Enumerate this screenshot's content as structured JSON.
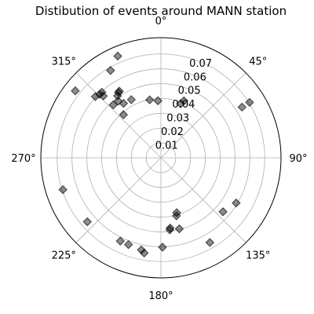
{
  "chart_data": {
    "type": "scatter",
    "projection": "polar",
    "title": "Distibution of events around MANN station",
    "theta_zero": "north",
    "theta_direction": "clockwise",
    "angular_tick_labels": [
      "0°",
      "45°",
      "90°",
      "135°",
      "180°",
      "225°",
      "270°",
      "315°"
    ],
    "radial_ticks": [
      0.01,
      0.02,
      0.03,
      0.04,
      0.05,
      0.06,
      0.07
    ],
    "radial_tick_labels": [
      "0.01",
      "0.02",
      "0.03",
      "0.04",
      "0.05",
      "0.06",
      "0.07"
    ],
    "rlim": [
      0,
      0.081
    ],
    "radial_label_angle_deg": 22.5,
    "grid": true,
    "marker": "diamond",
    "marker_color": "#000000",
    "marker_alpha": 0.45,
    "points": [
      {
        "theta": 337.0,
        "r": 0.0745
      },
      {
        "theta": 330.0,
        "r": 0.068
      },
      {
        "theta": 318.0,
        "r": 0.0595
      },
      {
        "theta": 317.0,
        "r": 0.057
      },
      {
        "theta": 316.0,
        "r": 0.0595
      },
      {
        "theta": 313.0,
        "r": 0.0605
      },
      {
        "theta": 308.0,
        "r": 0.0733
      },
      {
        "theta": 328.0,
        "r": 0.053
      },
      {
        "theta": 327.0,
        "r": 0.0525
      },
      {
        "theta": 325.0,
        "r": 0.051
      },
      {
        "theta": 323.0,
        "r": 0.0478
      },
      {
        "theta": 325.5,
        "r": 0.0445
      },
      {
        "theta": 319.0,
        "r": 0.0385
      },
      {
        "theta": 333.0,
        "r": 0.044
      },
      {
        "theta": 318.0,
        "r": 0.048
      },
      {
        "theta": 349.0,
        "r": 0.0398
      },
      {
        "theta": 357.0,
        "r": 0.0385
      },
      {
        "theta": 20.0,
        "r": 0.0388
      },
      {
        "theta": 22.0,
        "r": 0.0414
      },
      {
        "theta": 58.0,
        "r": 0.0645
      },
      {
        "theta": 58.0,
        "r": 0.0705
      },
      {
        "theta": 121.0,
        "r": 0.0592
      },
      {
        "theta": 131.0,
        "r": 0.0555
      },
      {
        "theta": 150.0,
        "r": 0.066
      },
      {
        "theta": 164.0,
        "r": 0.0385
      },
      {
        "theta": 165.0,
        "r": 0.0405
      },
      {
        "theta": 165.5,
        "r": 0.0495
      },
      {
        "theta": 172.5,
        "r": 0.0478
      },
      {
        "theta": 173.0,
        "r": 0.049
      },
      {
        "theta": 179.0,
        "r": 0.0603
      },
      {
        "theta": 190.0,
        "r": 0.0652
      },
      {
        "theta": 192.0,
        "r": 0.0635
      },
      {
        "theta": 200.5,
        "r": 0.0625
      },
      {
        "theta": 206.0,
        "r": 0.0625
      },
      {
        "theta": 229.0,
        "r": 0.0658
      },
      {
        "theta": 252.0,
        "r": 0.0695
      }
    ]
  }
}
